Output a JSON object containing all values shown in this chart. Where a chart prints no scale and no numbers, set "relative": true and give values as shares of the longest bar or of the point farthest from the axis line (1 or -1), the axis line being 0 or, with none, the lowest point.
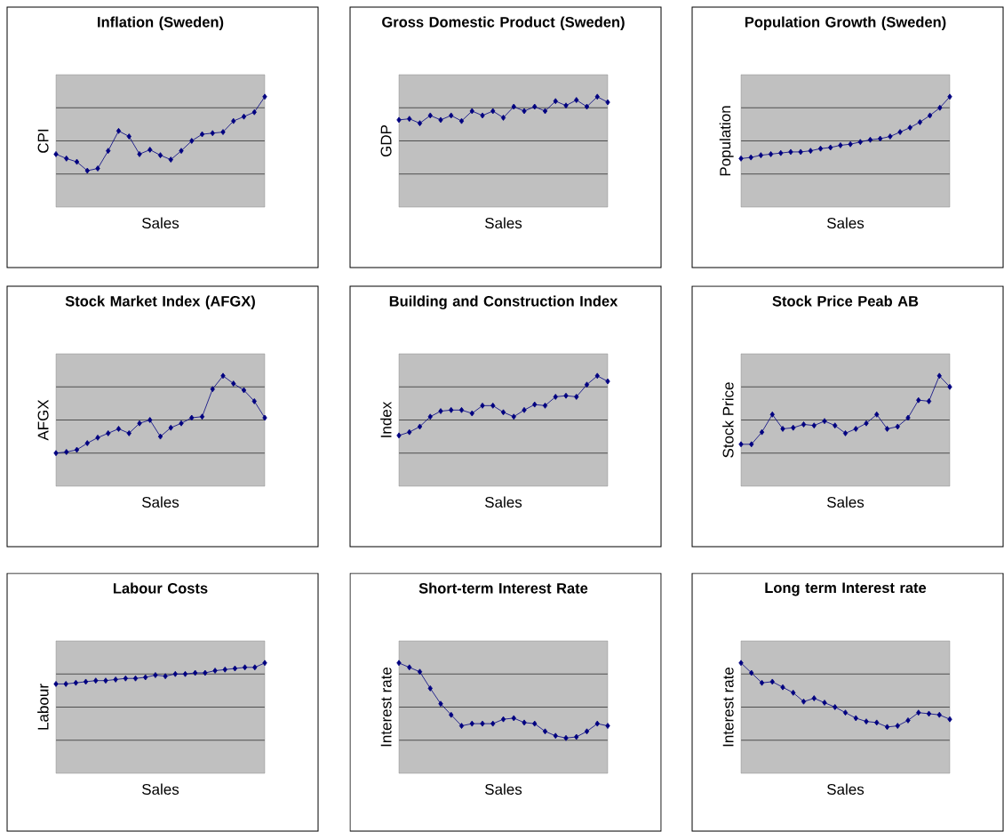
{
  "chart_data": [
    {
      "type": "line",
      "title": "Inflation (Sweden)",
      "xlabel": "Sales",
      "ylabel": "CPI",
      "relative": true,
      "grid": "y",
      "marker": "diamond",
      "color": "#000080",
      "categories": [
        null,
        null,
        null,
        null,
        null,
        null,
        null,
        null,
        null,
        null,
        null,
        null,
        null,
        null,
        null,
        null,
        null,
        null,
        null,
        null,
        null
      ],
      "values": [
        0.48,
        0.44,
        0.41,
        0.33,
        0.35,
        0.51,
        0.69,
        0.64,
        0.48,
        0.52,
        0.47,
        0.43,
        0.51,
        0.6,
        0.66,
        0.67,
        0.68,
        0.78,
        0.82,
        0.86,
        1
      ]
    },
    {
      "type": "line",
      "title": "Gross Domestic Product (Sweden)",
      "xlabel": "Sales",
      "ylabel": "GDP",
      "relative": true,
      "grid": "y",
      "marker": "diamond",
      "color": "#000080",
      "categories": [
        null,
        null,
        null,
        null,
        null,
        null,
        null,
        null,
        null,
        null,
        null,
        null,
        null,
        null,
        null,
        null,
        null,
        null,
        null,
        null,
        null
      ],
      "values": [
        0.79,
        0.8,
        0.76,
        0.83,
        0.79,
        0.83,
        0.78,
        0.87,
        0.83,
        0.87,
        0.81,
        0.91,
        0.87,
        0.91,
        0.87,
        0.96,
        0.92,
        0.97,
        0.91,
        1,
        0.95
      ]
    },
    {
      "type": "line",
      "title": "Population Growth (Sweden)",
      "xlabel": "Sales",
      "ylabel": "Population",
      "relative": true,
      "grid": "y",
      "marker": "diamond",
      "color": "#000080",
      "categories": [
        null,
        null,
        null,
        null,
        null,
        null,
        null,
        null,
        null,
        null,
        null,
        null,
        null,
        null,
        null,
        null,
        null,
        null,
        null,
        null,
        null,
        null
      ],
      "values": [
        0.44,
        0.45,
        0.47,
        0.48,
        0.49,
        0.5,
        0.5,
        0.51,
        0.53,
        0.54,
        0.56,
        0.57,
        0.59,
        0.61,
        0.62,
        0.64,
        0.68,
        0.72,
        0.77,
        0.83,
        0.9,
        1
      ]
    },
    {
      "type": "line",
      "title": "Stock Market Index (AFGX)",
      "xlabel": "Sales",
      "ylabel": "AFGX",
      "relative": true,
      "grid": "y",
      "marker": "diamond",
      "color": "#000080",
      "categories": [
        null,
        null,
        null,
        null,
        null,
        null,
        null,
        null,
        null,
        null,
        null,
        null,
        null,
        null,
        null,
        null,
        null,
        null,
        null,
        null,
        null
      ],
      "values": [
        0.3,
        0.31,
        0.33,
        0.39,
        0.44,
        0.48,
        0.52,
        0.48,
        0.57,
        0.6,
        0.45,
        0.53,
        0.57,
        0.62,
        0.63,
        0.88,
        1,
        0.93,
        0.87,
        0.77,
        0.62
      ]
    },
    {
      "type": "line",
      "title": "Building and Construction Index",
      "xlabel": "Sales",
      "ylabel": "Index",
      "relative": true,
      "grid": "y",
      "marker": "diamond",
      "color": "#000080",
      "categories": [
        null,
        null,
        null,
        null,
        null,
        null,
        null,
        null,
        null,
        null,
        null,
        null,
        null,
        null,
        null,
        null,
        null,
        null,
        null,
        null,
        null
      ],
      "values": [
        0.46,
        0.49,
        0.54,
        0.63,
        0.68,
        0.69,
        0.69,
        0.66,
        0.73,
        0.73,
        0.67,
        0.63,
        0.69,
        0.74,
        0.73,
        0.81,
        0.82,
        0.81,
        0.92,
        1,
        0.95
      ]
    },
    {
      "type": "line",
      "title": "Stock Price Peab AB",
      "xlabel": "Sales",
      "ylabel": "Stock Price",
      "relative": true,
      "grid": "y",
      "marker": "diamond",
      "color": "#000080",
      "categories": [
        null,
        null,
        null,
        null,
        null,
        null,
        null,
        null,
        null,
        null,
        null,
        null,
        null,
        null,
        null,
        null,
        null,
        null,
        null,
        null,
        null
      ],
      "values": [
        0.38,
        0.38,
        0.49,
        0.65,
        0.52,
        0.53,
        0.56,
        0.55,
        0.59,
        0.55,
        0.48,
        0.52,
        0.57,
        0.65,
        0.52,
        0.54,
        0.62,
        0.78,
        0.77,
        1,
        0.9
      ]
    },
    {
      "type": "line",
      "title": "Labour Costs",
      "xlabel": "Sales",
      "ylabel": "Labour",
      "relative": true,
      "grid": "y",
      "marker": "diamond",
      "color": "#000080",
      "categories": [
        null,
        null,
        null,
        null,
        null,
        null,
        null,
        null,
        null,
        null,
        null,
        null,
        null,
        null,
        null,
        null,
        null,
        null,
        null,
        null,
        null,
        null
      ],
      "values": [
        0.81,
        0.81,
        0.82,
        0.83,
        0.84,
        0.84,
        0.85,
        0.86,
        0.86,
        0.87,
        0.89,
        0.88,
        0.9,
        0.9,
        0.91,
        0.91,
        0.93,
        0.94,
        0.95,
        0.96,
        0.96,
        1
      ]
    },
    {
      "type": "line",
      "title": "Short-term Interest Rate",
      "xlabel": "Sales",
      "ylabel": "Interest rate",
      "relative": true,
      "grid": "y",
      "marker": "diamond",
      "color": "#000080",
      "categories": [
        null,
        null,
        null,
        null,
        null,
        null,
        null,
        null,
        null,
        null,
        null,
        null,
        null,
        null,
        null,
        null,
        null,
        null,
        null,
        null,
        null
      ],
      "values": [
        1,
        0.96,
        0.92,
        0.77,
        0.63,
        0.53,
        0.43,
        0.45,
        0.45,
        0.45,
        0.49,
        0.5,
        0.46,
        0.45,
        0.38,
        0.34,
        0.32,
        0.33,
        0.38,
        0.45,
        0.43
      ]
    },
    {
      "type": "line",
      "title": "Long term Interest rate",
      "xlabel": "Sales",
      "ylabel": "Interest rate",
      "relative": true,
      "grid": "y",
      "marker": "diamond",
      "color": "#000080",
      "categories": [
        null,
        null,
        null,
        null,
        null,
        null,
        null,
        null,
        null,
        null,
        null,
        null,
        null,
        null,
        null,
        null,
        null,
        null,
        null,
        null,
        null
      ],
      "values": [
        1,
        0.91,
        0.82,
        0.83,
        0.78,
        0.73,
        0.65,
        0.68,
        0.64,
        0.6,
        0.55,
        0.5,
        0.47,
        0.46,
        0.42,
        0.43,
        0.48,
        0.55,
        0.54,
        0.53,
        0.49
      ]
    }
  ]
}
